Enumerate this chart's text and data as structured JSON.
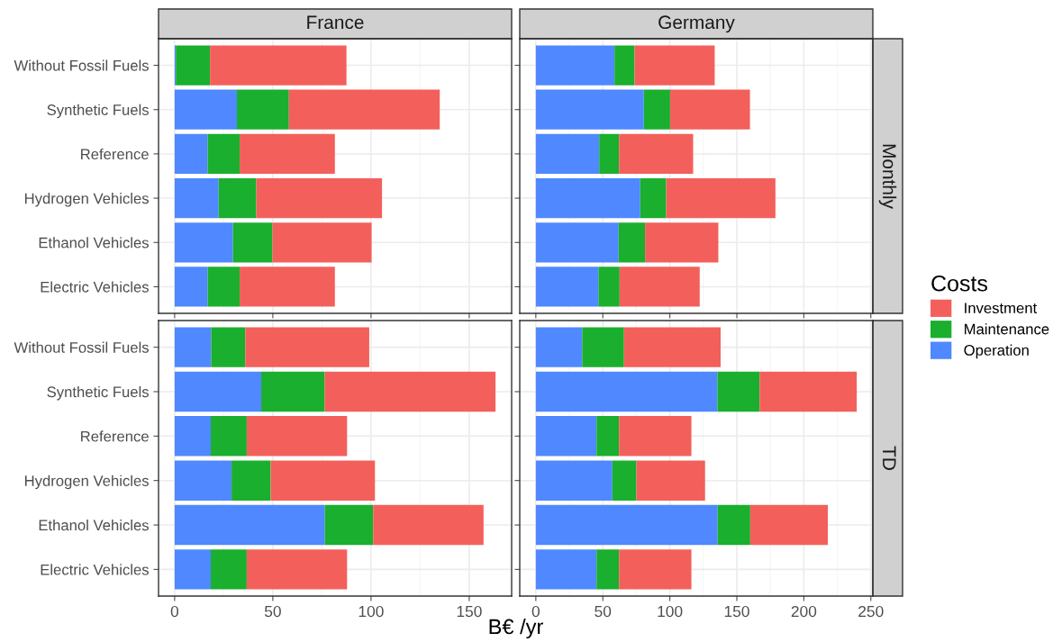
{
  "chart_data": [
    {
      "type": "bar",
      "orientation": "horizontal",
      "stacked": true,
      "title": "France",
      "categories": [
        "Without Fossil Fuels",
        "Synthetic Fuels",
        "Reference",
        "Hydrogen Vehicles",
        "Ethanol Vehicles",
        "Electric Vehicles"
      ],
      "series": [
        {
          "name": "Operation",
          "color": "#4f88ff",
          "values": [
            0.6,
            31.7,
            16.8,
            22.4,
            29.7,
            16.8
          ]
        },
        {
          "name": "Maintenance",
          "color": "#1aaf2e",
          "values": [
            17.4,
            26.5,
            16.3,
            19.2,
            20.1,
            16.3
          ]
        },
        {
          "name": "Investment",
          "color": "#f3605b",
          "values": [
            69.5,
            76.8,
            48.5,
            64.0,
            50.5,
            48.5
          ]
        }
      ],
      "xlim": [
        -8.2,
        171.6
      ],
      "xticks": [
        0,
        50,
        100,
        150
      ],
      "grid": true,
      "tick_labels": "y",
      "legend": "right",
      "legend_title": "Costs"
    },
    {
      "type": "bar",
      "orientation": "horizontal",
      "stacked": true,
      "title": "Germany",
      "y2label": "Monthly",
      "categories": [
        null,
        null,
        null,
        null,
        null,
        null
      ],
      "series": [
        {
          "color": "#4f88ff",
          "values": [
            58.7,
            80.6,
            47.3,
            77.9,
            61.8,
            46.7
          ]
        },
        {
          "color": "#1aaf2e",
          "values": [
            15.0,
            19.6,
            14.8,
            19.4,
            19.7,
            15.8
          ]
        },
        {
          "color": "#f3605b",
          "values": [
            59.8,
            59.6,
            55.3,
            81.5,
            54.7,
            59.8
          ]
        }
      ],
      "xlim": [
        -12,
        251.5
      ],
      "xticks": [
        0,
        50,
        100,
        150,
        200,
        250
      ],
      "grid": true,
      "tick_labels": false
    },
    {
      "type": "bar",
      "orientation": "horizontal",
      "stacked": true,
      "xlabel": "B€ /yr",
      "categories": [
        "Without Fossil Fuels",
        "Synthetic Fuels",
        "Reference",
        "Hydrogen Vehicles",
        "Ethanol Vehicles",
        "Electric Vehicles"
      ],
      "series": [
        {
          "color": "#4f88ff",
          "values": [
            18.6,
            44.1,
            18.4,
            29.0,
            76.5,
            18.4
          ]
        },
        {
          "color": "#1aaf2e",
          "values": [
            17.4,
            32.3,
            18.3,
            19.9,
            24.6,
            18.3
          ]
        },
        {
          "color": "#f3605b",
          "values": [
            63.1,
            87.0,
            51.1,
            53.1,
            56.2,
            51.1
          ]
        }
      ],
      "xlim": [
        -8.2,
        171.6
      ],
      "xticks": [
        0,
        50,
        100,
        150
      ],
      "grid": true
    },
    {
      "type": "bar",
      "orientation": "horizontal",
      "stacked": true,
      "y2label": "TD",
      "categories": [
        null,
        null,
        null,
        null,
        null,
        null
      ],
      "series": [
        {
          "color": "#4f88ff",
          "values": [
            34.6,
            135.5,
            45.3,
            57.1,
            135.7,
            45.3
          ]
        },
        {
          "color": "#1aaf2e",
          "values": [
            31.2,
            31.5,
            16.8,
            17.9,
            24.3,
            16.8
          ]
        },
        {
          "color": "#f3605b",
          "values": [
            72.1,
            72.5,
            54.0,
            51.3,
            57.9,
            54.0
          ]
        }
      ],
      "xlim": [
        -12,
        251.5
      ],
      "xticks": [
        0,
        50,
        100,
        150,
        200,
        250
      ],
      "grid": true,
      "tick_labels": "x"
    }
  ]
}
